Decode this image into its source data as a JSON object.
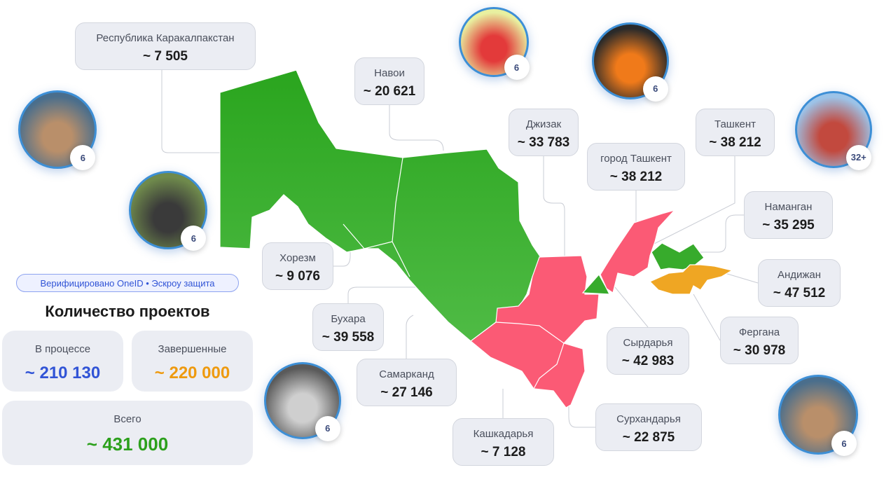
{
  "verified_badge": "Верифицировано OneID • Эскроу защита",
  "projects": {
    "title": "Количество проектов",
    "in_progress": {
      "label": "В процессе",
      "value": "~ 210 130",
      "color": "#3154d6"
    },
    "completed": {
      "label": "Завершенные",
      "value": "~ 220 000",
      "color": "#ee9a0f"
    },
    "total": {
      "label": "Всего",
      "value": "~ 431 000",
      "color": "#2ca01c"
    }
  },
  "regions": [
    {
      "name": "Республика Каракалпакстан",
      "value": "~ 7 505",
      "status": "green"
    },
    {
      "name": "Навои",
      "value": "~ 20 621",
      "status": "green"
    },
    {
      "name": "Джизак",
      "value": "~ 33 783",
      "status": "red"
    },
    {
      "name": "Ташкент",
      "value": "~ 38 212",
      "status": "red"
    },
    {
      "name": "город Ташкент",
      "value": "~ 38 212",
      "status": "red"
    },
    {
      "name": "Наманган",
      "value": "~ 35 295",
      "status": "green"
    },
    {
      "name": "Андижан",
      "value": "~ 47 512",
      "status": "orange"
    },
    {
      "name": "Фергана",
      "value": "~ 30 978",
      "status": "orange"
    },
    {
      "name": "Сырдарья",
      "value": "~ 42 983",
      "status": "green"
    },
    {
      "name": "Сурхандарья",
      "value": "~ 22 875",
      "status": "red"
    },
    {
      "name": "Кашкадарья",
      "value": "~ 7 128",
      "status": "red"
    },
    {
      "name": "Самарканд",
      "value": "~ 27 146",
      "status": "red"
    },
    {
      "name": "Бухара",
      "value": "~ 39 558",
      "status": "green"
    },
    {
      "name": "Хорезм",
      "value": "~ 9 076",
      "status": "green"
    }
  ],
  "photos": [
    {
      "subject": "child-exercise",
      "count": "6"
    },
    {
      "subject": "wheelchair",
      "count": "6"
    },
    {
      "subject": "heart-in-hands",
      "count": "6"
    },
    {
      "subject": "house-fire",
      "count": "6"
    },
    {
      "subject": "sports-court",
      "count": "32+"
    },
    {
      "subject": "renovation-worker",
      "count": "6"
    },
    {
      "subject": "child-exercise",
      "count": "6"
    }
  ],
  "colors": {
    "green": "#37ab2c",
    "red": "#fb5a75",
    "orange": "#efa623"
  }
}
